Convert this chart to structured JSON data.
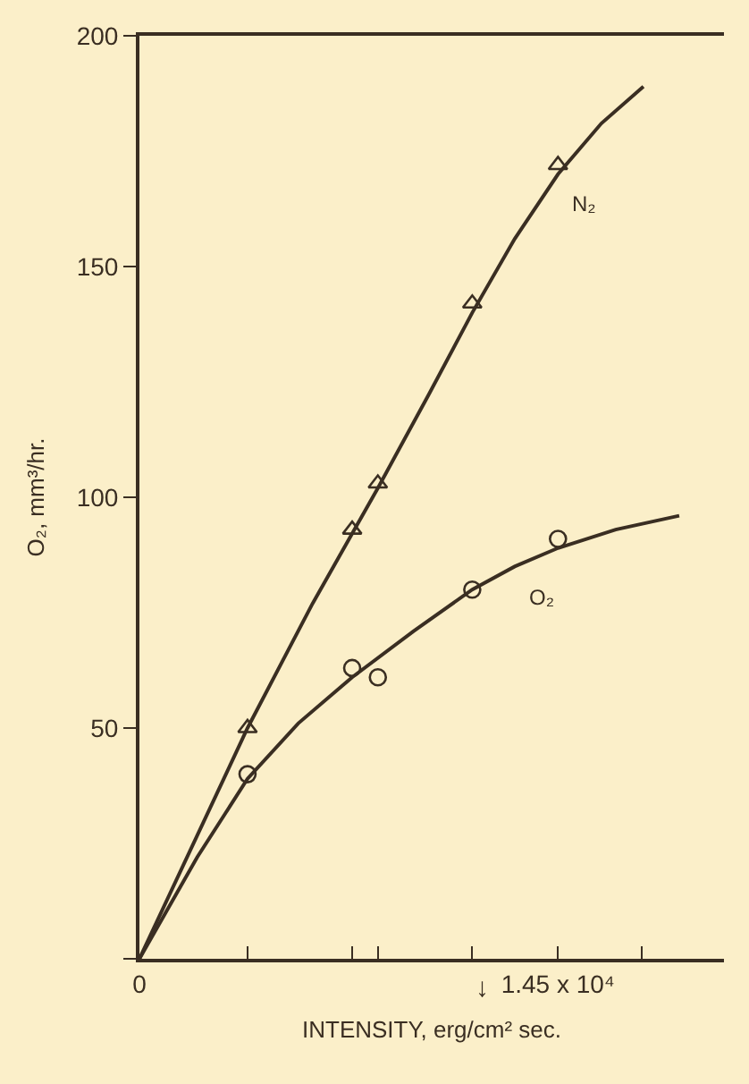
{
  "chart_data": {
    "type": "line",
    "xlabel": "INTENSITY, erg/cm² sec.",
    "ylabel": "O₂, mm³/hr.",
    "xlim": [
      0,
      20250
    ],
    "ylim": [
      0,
      200
    ],
    "xticks": [
      {
        "value": 0,
        "label": "0"
      },
      {
        "value": 3745,
        "label": null
      },
      {
        "value": 7370,
        "label": null
      },
      {
        "value": 8260,
        "label": null
      },
      {
        "value": 11530,
        "label": null
      },
      {
        "value": 14500,
        "label": "1.45 x 10⁴"
      },
      {
        "value": 17410,
        "label": null
      }
    ],
    "yticks": [
      {
        "value": 0,
        "label": null
      },
      50,
      100,
      150,
      200
    ],
    "grid": false,
    "series": [
      {
        "color": "#3a2e22",
        "marker": "none",
        "line_style": "solid",
        "x": [
          0,
          3745,
          6000,
          8260,
          10000,
          11530,
          13000,
          14500,
          16000,
          17460
        ],
        "values": [
          0,
          50,
          77,
          102,
          122,
          140,
          156,
          170,
          181,
          189
        ]
      },
      {
        "color": "#3a2e22",
        "marker": "none",
        "line_style": "solid",
        "x": [
          0,
          2000,
          3745,
          5500,
          7370,
          9500,
          11530,
          13000,
          14500,
          16500,
          18700
        ],
        "values": [
          0,
          22,
          39,
          51,
          61,
          71,
          80,
          85,
          89,
          93,
          96
        ]
      },
      {
        "type": "scatter",
        "color": "#3a2e22",
        "marker": "triangle",
        "x": [
          3745,
          7370,
          8260,
          11530,
          14500
        ],
        "values": [
          50,
          93,
          103,
          142,
          172
        ]
      },
      {
        "type": "scatter",
        "color": "#3a2e22",
        "marker": "circle",
        "x": [
          3745,
          7370,
          8260,
          11530,
          14500
        ],
        "values": [
          40,
          63,
          61,
          80,
          91
        ]
      }
    ],
    "annotations": [
      "N₂",
      "O₂",
      "↓"
    ]
  }
}
